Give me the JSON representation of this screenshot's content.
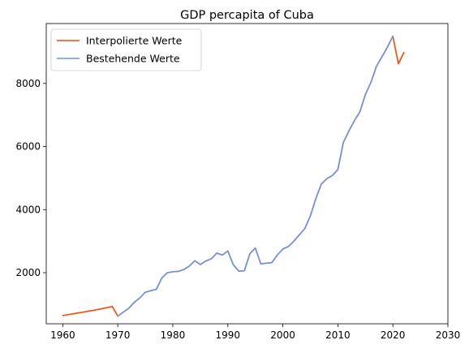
{
  "chart_data": {
    "type": "line",
    "title": "GDP percapita of Cuba",
    "xlabel": "",
    "ylabel": "",
    "xlim": [
      1957,
      2030
    ],
    "ylim": [
      380,
      9900
    ],
    "xticks": [
      1960,
      1970,
      1980,
      1990,
      2000,
      2010,
      2020,
      2030
    ],
    "yticks": [
      2000,
      4000,
      6000,
      8000
    ],
    "grid": false,
    "legend_position": "top-left",
    "series": [
      {
        "name": "Interpolierte Werte",
        "color": "#ff4500",
        "x": [
          1960,
          1961,
          1962,
          1963,
          1964,
          1965,
          1966,
          1967,
          1968,
          1969,
          1970,
          1971,
          1972,
          1973,
          1974,
          1975,
          1976,
          1977,
          1978,
          1979,
          1980,
          1981,
          1982,
          1983,
          1984,
          1985,
          1986,
          1987,
          1988,
          1989,
          1990,
          1991,
          1992,
          1993,
          1994,
          1995,
          1996,
          1997,
          1998,
          1999,
          2000,
          2001,
          2002,
          2003,
          2004,
          2005,
          2006,
          2007,
          2008,
          2009,
          2010,
          2011,
          2012,
          2013,
          2014,
          2015,
          2016,
          2017,
          2018,
          2019,
          2020,
          2021,
          2022
        ],
        "y": [
          640,
          670,
          700,
          730,
          760,
          790,
          820,
          855,
          890,
          930,
          620,
          750,
          870,
          1060,
          1200,
          1380,
          1430,
          1470,
          1830,
          2000,
          2030,
          2040,
          2100,
          2210,
          2380,
          2260,
          2370,
          2440,
          2620,
          2560,
          2690,
          2250,
          2050,
          2060,
          2600,
          2780,
          2280,
          2300,
          2320,
          2560,
          2750,
          2830,
          3000,
          3200,
          3400,
          3800,
          4350,
          4810,
          4980,
          5080,
          5270,
          6130,
          6490,
          6820,
          7100,
          7650,
          8030,
          8540,
          8840,
          9150,
          9500,
          8620,
          8980
        ]
      },
      {
        "name": "Bestehende Werte",
        "color": "#6495ed",
        "x": [
          1970,
          1971,
          1972,
          1973,
          1974,
          1975,
          1976,
          1977,
          1978,
          1979,
          1980,
          1981,
          1982,
          1983,
          1984,
          1985,
          1986,
          1987,
          1988,
          1989,
          1990,
          1991,
          1992,
          1993,
          1994,
          1995,
          1996,
          1997,
          1998,
          1999,
          2000,
          2001,
          2002,
          2003,
          2004,
          2005,
          2006,
          2007,
          2008,
          2009,
          2010,
          2011,
          2012,
          2013,
          2014,
          2015,
          2016,
          2017,
          2018,
          2019,
          2020
        ],
        "y": [
          620,
          750,
          870,
          1060,
          1200,
          1380,
          1430,
          1470,
          1830,
          2000,
          2030,
          2040,
          2100,
          2210,
          2380,
          2260,
          2370,
          2440,
          2620,
          2560,
          2690,
          2250,
          2050,
          2060,
          2600,
          2780,
          2280,
          2300,
          2320,
          2560,
          2750,
          2830,
          3000,
          3200,
          3400,
          3800,
          4350,
          4810,
          4980,
          5080,
          5270,
          6130,
          6490,
          6820,
          7100,
          7650,
          8030,
          8540,
          8840,
          9150,
          9500
        ]
      }
    ]
  }
}
